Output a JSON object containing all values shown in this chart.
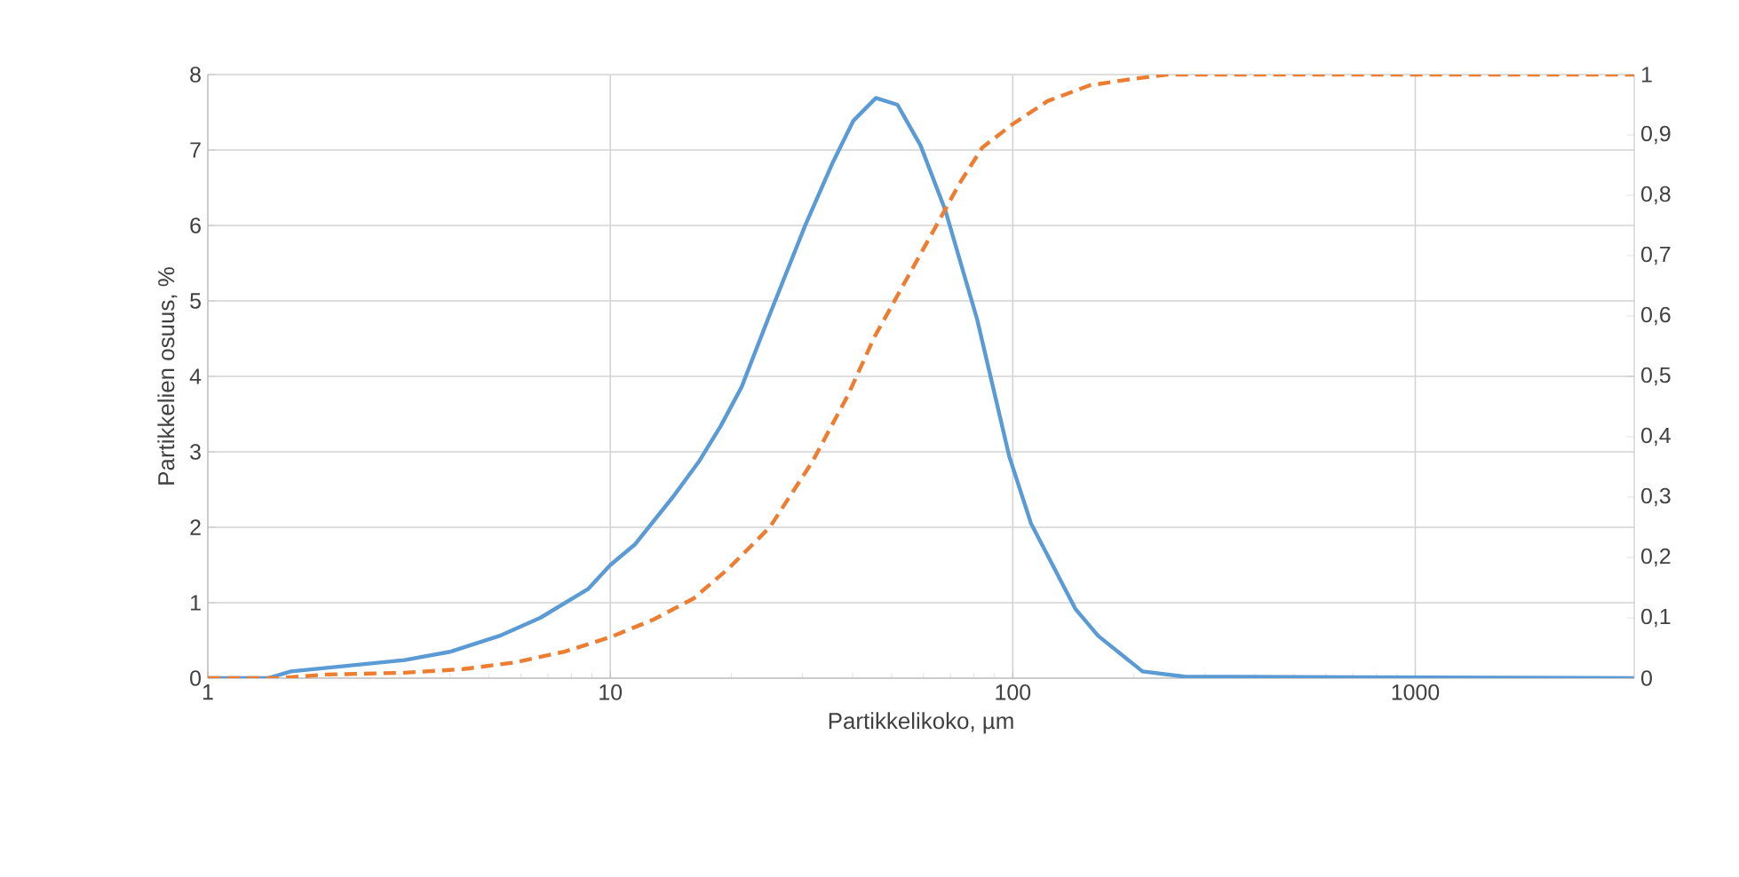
{
  "chart_data": {
    "type": "line",
    "xlabel": "Partikkelikoko, µm",
    "ylabel": "Partikkelien osuus, %",
    "log": "x",
    "grid": true,
    "xlim": [
      1,
      3500
    ],
    "xticks": [
      1,
      10,
      100,
      1000
    ],
    "ylim": [
      0,
      8
    ],
    "yticks": [
      0,
      1,
      2,
      3,
      4,
      5,
      6,
      7,
      8
    ],
    "y2lim": [
      0,
      1
    ],
    "y2ticks": [
      0,
      {
        "value": 0.1,
        "label": "0,1"
      },
      {
        "value": 0.2,
        "label": "0,2"
      },
      {
        "value": 0.3,
        "label": "0,3"
      },
      {
        "value": 0.4,
        "label": "0,4"
      },
      {
        "value": 0.5,
        "label": "0,5"
      },
      {
        "value": 0.6,
        "label": "0,6"
      },
      {
        "value": 0.7,
        "label": "0,7"
      },
      {
        "value": 0.8,
        "label": "0,8"
      },
      {
        "value": 0.9,
        "label": "0,9"
      },
      1
    ],
    "series": [
      {
        "color": "#5b9bd5",
        "line_style": "solid",
        "x": [
          1,
          1.41,
          1.61,
          3.08,
          4.0,
          5.3,
          6.7,
          8.8,
          10,
          11.5,
          14.3,
          16.6,
          18.8,
          21.2,
          24.9,
          30.5,
          35.6,
          40.2,
          45.7,
          51.7,
          59,
          68,
          81.6,
          98,
          111,
          143,
          163,
          210,
          267,
          3500
        ],
        "values": [
          0,
          0,
          0.09,
          0.24,
          0.35,
          0.56,
          0.8,
          1.18,
          1.5,
          1.77,
          2.4,
          2.87,
          3.34,
          3.86,
          4.82,
          6.0,
          6.82,
          7.39,
          7.69,
          7.6,
          7.06,
          6.2,
          4.75,
          2.94,
          2.05,
          0.92,
          0.56,
          0.09,
          0.02,
          0
        ]
      },
      {
        "color": "#ed7d31",
        "line_style": "dashed",
        "axis": "y2",
        "x": [
          1,
          1.5,
          1.97,
          3.08,
          4.3,
          5.8,
          7.7,
          10,
          12.8,
          16.1,
          19.7,
          24.9,
          31.8,
          38.9,
          45.3,
          52.7,
          64.6,
          73.8,
          84,
          100,
          122,
          155,
          190,
          242,
          3500
        ],
        "values": [
          0,
          0,
          0.006,
          0.009,
          0.015,
          0.026,
          0.044,
          0.068,
          0.097,
          0.132,
          0.182,
          0.25,
          0.359,
          0.468,
          0.565,
          0.644,
          0.75,
          0.82,
          0.879,
          0.918,
          0.956,
          0.982,
          0.991,
          1.0,
          1.0
        ]
      }
    ]
  }
}
